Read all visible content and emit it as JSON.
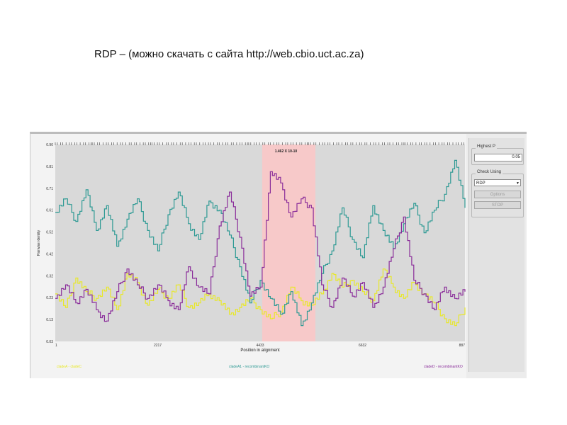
{
  "slide": {
    "title": "RDP – (можно скачать с сайта http://web.cbio.uct.ac.za)"
  },
  "side_panel": {
    "highest_p_label": "Highest P",
    "highest_p_value": "0.05",
    "check_using_label": "Check Using",
    "check_using_value": "RDP",
    "options_button": "Options",
    "stop_button": "STOP"
  },
  "colors": {
    "clade_c": "#e8e82a",
    "recombinant_ko": "#2e9a94",
    "clade_d": "#8a2d9a",
    "recombinant_region": "#f7c9c9",
    "plot_background": "#d9d9d9"
  },
  "chart_data": {
    "type": "line",
    "title": "",
    "xlabel": "Position in alignment",
    "ylabel": "Pairwise identity",
    "x_ticks": [
      "1",
      "2217",
      "4433",
      "6632",
      "887"
    ],
    "y_ticks": [
      "0.03",
      "0.13",
      "0.23",
      "0.32",
      "0.42",
      "0.52",
      "0.61",
      "0.71",
      "0.81",
      "0.90"
    ],
    "xlim": [
      0,
      1
    ],
    "ylim": [
      0.03,
      0.9
    ],
    "highlight": {
      "x_range": [
        0.505,
        0.635
      ],
      "label": "1.462 X 10-10"
    },
    "x": [
      0,
      0.025,
      0.05,
      0.075,
      0.1,
      0.125,
      0.15,
      0.175,
      0.2,
      0.225,
      0.25,
      0.275,
      0.3,
      0.325,
      0.35,
      0.375,
      0.4,
      0.425,
      0.45,
      0.475,
      0.5,
      0.525,
      0.55,
      0.575,
      0.6,
      0.625,
      0.65,
      0.675,
      0.7,
      0.725,
      0.75,
      0.775,
      0.8,
      0.825,
      0.85,
      0.875,
      0.9,
      0.925,
      0.95,
      0.975,
      1.0
    ],
    "series": [
      {
        "name": "cladeA - cladeC",
        "color": "#e8e82a",
        "values": [
          0.24,
          0.18,
          0.31,
          0.25,
          0.22,
          0.27,
          0.17,
          0.33,
          0.29,
          0.19,
          0.26,
          0.22,
          0.28,
          0.18,
          0.2,
          0.24,
          0.21,
          0.15,
          0.18,
          0.22,
          0.17,
          0.13,
          0.16,
          0.27,
          0.21,
          0.19,
          0.24,
          0.33,
          0.27,
          0.3,
          0.25,
          0.21,
          0.35,
          0.27,
          0.22,
          0.29,
          0.24,
          0.2,
          0.13,
          0.1,
          0.18
        ]
      },
      {
        "name": "cladeA1 - recombinantKO",
        "color": "#2e9a94",
        "values": [
          0.6,
          0.66,
          0.56,
          0.7,
          0.52,
          0.63,
          0.45,
          0.57,
          0.66,
          0.52,
          0.43,
          0.59,
          0.69,
          0.55,
          0.48,
          0.65,
          0.61,
          0.5,
          0.36,
          0.2,
          0.3,
          0.22,
          0.15,
          0.25,
          0.1,
          0.2,
          0.33,
          0.43,
          0.62,
          0.48,
          0.4,
          0.63,
          0.52,
          0.44,
          0.55,
          0.64,
          0.51,
          0.61,
          0.68,
          0.83,
          0.62
        ]
      },
      {
        "name": "cladeD - recombinantKO",
        "color": "#8a2d9a",
        "values": [
          0.22,
          0.28,
          0.2,
          0.26,
          0.17,
          0.12,
          0.25,
          0.35,
          0.28,
          0.22,
          0.28,
          0.21,
          0.17,
          0.36,
          0.27,
          0.24,
          0.54,
          0.69,
          0.49,
          0.23,
          0.27,
          0.78,
          0.73,
          0.58,
          0.66,
          0.62,
          0.28,
          0.18,
          0.31,
          0.23,
          0.29,
          0.18,
          0.27,
          0.44,
          0.58,
          0.3,
          0.24,
          0.17,
          0.27,
          0.22,
          0.25
        ]
      }
    ]
  }
}
